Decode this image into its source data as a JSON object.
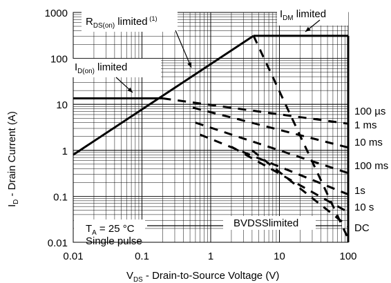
{
  "chart_data": {
    "type": "line",
    "title": "",
    "x_scale": "log",
    "y_scale": "log",
    "xlim": [
      0.01,
      100
    ],
    "ylim": [
      0.01,
      1000
    ],
    "grid": true,
    "xlabel": {
      "main": "V",
      "sub": "DS",
      "rest": " - Drain-to-Source Voltage (V)"
    },
    "ylabel": {
      "main": "I",
      "sub": "D",
      "rest": " - Drain Current (A)"
    },
    "x_ticks": [
      {
        "v": 0.01,
        "label": "0.01"
      },
      {
        "v": 0.1,
        "label": "0.1"
      },
      {
        "v": 1,
        "label": "1"
      },
      {
        "v": 10,
        "label": "10"
      },
      {
        "v": 100,
        "label": "100"
      }
    ],
    "y_ticks": [
      {
        "v": 0.01,
        "label": "0.01"
      },
      {
        "v": 0.1,
        "label": "0.1"
      },
      {
        "v": 1,
        "label": "1"
      },
      {
        "v": 10,
        "label": "10"
      },
      {
        "v": 100,
        "label": "100"
      },
      {
        "v": 1000,
        "label": "1000"
      }
    ],
    "boundaries": {
      "rds_on": {
        "points": [
          [
            0.01,
            0.8
          ],
          [
            4.2,
            310
          ]
        ]
      },
      "idm": {
        "points": [
          [
            4.2,
            310
          ],
          [
            100,
            310
          ]
        ]
      },
      "id_on": {
        "points": [
          [
            0.01,
            13.5
          ],
          [
            0.2,
            13.5
          ]
        ]
      }
    },
    "pulse_lines": [
      {
        "label": "100 µs",
        "points": [
          [
            0.2,
            13.5
          ],
          [
            100,
            3.8
          ]
        ]
      },
      {
        "label": "1 ms",
        "points": [
          [
            0.55,
            8.5
          ],
          [
            100,
            1.15
          ]
        ]
      },
      {
        "label": "10 ms",
        "points": [
          [
            0.6,
            4.0
          ],
          [
            100,
            0.32
          ]
        ]
      },
      {
        "label": "100 ms",
        "points": [
          [
            0.7,
            2.2
          ],
          [
            100,
            0.11
          ]
        ]
      },
      {
        "label": "1s",
        "points": [
          [
            2.0,
            1.2
          ],
          [
            100,
            0.045
          ]
        ]
      },
      {
        "label": "10 s",
        "points": [
          [
            4.0,
            1.0
          ],
          [
            100,
            0.022
          ]
        ]
      },
      {
        "label": "DC",
        "points": [
          [
            4.2,
            310
          ],
          [
            100,
            0.012
          ]
        ]
      }
    ],
    "annotations": {
      "rds": {
        "main": "R",
        "sub": "DS(on)",
        "rest": " limited",
        "sup": "(1)"
      },
      "idm": {
        "main": "I",
        "sub": "DM",
        "rest": " limited"
      },
      "idon": {
        "main": "I",
        "sub": "D(on)",
        "rest": " limited"
      },
      "ta": {
        "main": "T",
        "sub": "A",
        "rest": " = 25 °C"
      },
      "single_pulse": "Single pulse",
      "bvdss": "BVDSSlimited"
    }
  }
}
